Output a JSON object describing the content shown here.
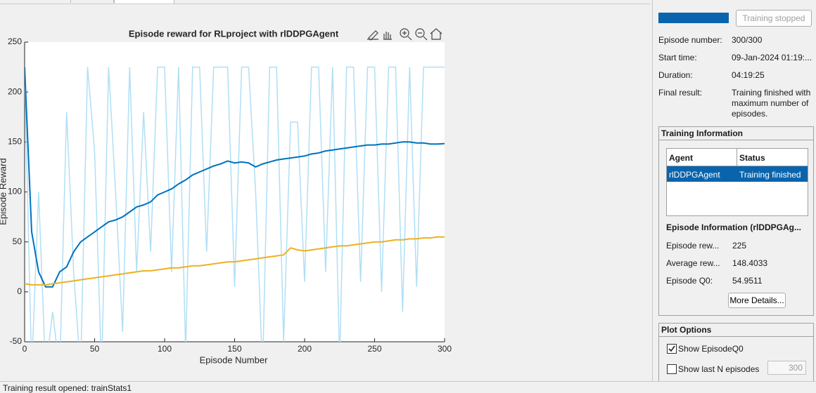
{
  "chart_data": {
    "type": "line",
    "title": "Episode reward for RLproject with rlDDPGAgent",
    "xlabel": "Episode Number",
    "ylabel": "Episode Reward",
    "x": [
      0,
      5,
      10,
      15,
      20,
      25,
      30,
      35,
      40,
      45,
      50,
      55,
      60,
      65,
      70,
      75,
      80,
      85,
      90,
      95,
      100,
      105,
      110,
      115,
      120,
      125,
      130,
      135,
      140,
      145,
      150,
      155,
      160,
      165,
      170,
      175,
      180,
      185,
      190,
      195,
      200,
      205,
      210,
      215,
      220,
      225,
      230,
      235,
      240,
      245,
      250,
      255,
      260,
      265,
      270,
      275,
      280,
      285,
      290,
      295,
      300
    ],
    "series": [
      {
        "color": "#b0dff5",
        "values": [
          225,
          -80,
          100,
          -80,
          -20,
          -80,
          180,
          20,
          -80,
          225,
          140,
          -80,
          225,
          100,
          -40,
          225,
          20,
          180,
          40,
          225,
          225,
          20,
          225,
          -60,
          225,
          225,
          40,
          225,
          225,
          225,
          5,
          225,
          225,
          100,
          -80,
          225,
          225,
          -50,
          170,
          170,
          10,
          225,
          225,
          20,
          225,
          -70,
          225,
          225,
          10,
          225,
          225,
          0,
          225,
          225,
          -20,
          225,
          5,
          225,
          225,
          225,
          225
        ]
      },
      {
        "color": "#0072bd",
        "values": [
          225,
          60,
          20,
          5,
          5,
          20,
          25,
          40,
          50,
          55,
          60,
          65,
          70,
          72,
          75,
          80,
          85,
          87,
          90,
          97,
          100,
          103,
          108,
          112,
          117,
          120,
          123,
          126,
          128,
          131,
          129,
          130,
          129,
          125,
          128,
          130,
          132,
          133,
          134,
          135,
          136,
          138,
          139,
          141,
          142,
          143,
          144,
          145,
          146,
          147,
          147,
          148,
          148,
          149,
          150,
          150,
          149,
          149,
          148,
          148,
          148.4
        ]
      },
      {
        "color": "#edb120",
        "values": [
          8,
          7,
          7,
          7,
          8,
          9,
          10,
          11,
          12,
          13,
          14,
          15,
          16,
          17,
          18,
          19,
          20,
          21,
          21,
          22,
          23,
          24,
          24,
          25,
          26,
          26,
          27,
          28,
          29,
          30,
          30,
          31,
          32,
          33,
          34,
          35,
          36,
          37,
          44,
          42,
          41,
          42,
          43,
          44,
          45,
          46,
          46,
          47,
          48,
          49,
          50,
          50,
          51,
          52,
          52,
          53,
          53,
          54,
          54,
          55,
          54.95
        ]
      }
    ],
    "xlim": [
      0,
      300
    ],
    "xticks": [
      0,
      50,
      100,
      150,
      200,
      250,
      300
    ],
    "ylim": [
      -50,
      250
    ],
    "yticks": [
      -50,
      0,
      50,
      100,
      150,
      200,
      250
    ]
  },
  "status_panel": {
    "button": "Training stopped",
    "info": [
      {
        "label": "Episode number:",
        "value": "300/300"
      },
      {
        "label": "Start time:",
        "value": "09-Jan-2024 01:19:..."
      },
      {
        "label": "Duration:",
        "value": "04:19:25"
      },
      {
        "label": "Final result:",
        "value": "Training finished with maximum number of episodes."
      }
    ]
  },
  "training_information": {
    "title": "Training Information",
    "table": {
      "headers": [
        "Agent",
        "Status"
      ],
      "rows": [
        [
          "rlDDPGAgent",
          "Training finished"
        ]
      ]
    },
    "episode_information": {
      "title": "Episode Information (rlDDPGAg...",
      "rows": [
        {
          "label": "Episode rew...",
          "value": 225
        },
        {
          "label": "Average rew...",
          "value": 148.4033
        },
        {
          "label": "Episode Q0:",
          "value": 54.9511
        }
      ],
      "button": "More Details..."
    }
  },
  "plot_options": {
    "title": "Plot Options",
    "options": [
      {
        "label": "Show EpisodeQ0",
        "checked": true
      },
      {
        "label": "Show last N episodes",
        "checked": false,
        "value": 300
      }
    ]
  },
  "status_bar": "Training result opened: trainStats1"
}
